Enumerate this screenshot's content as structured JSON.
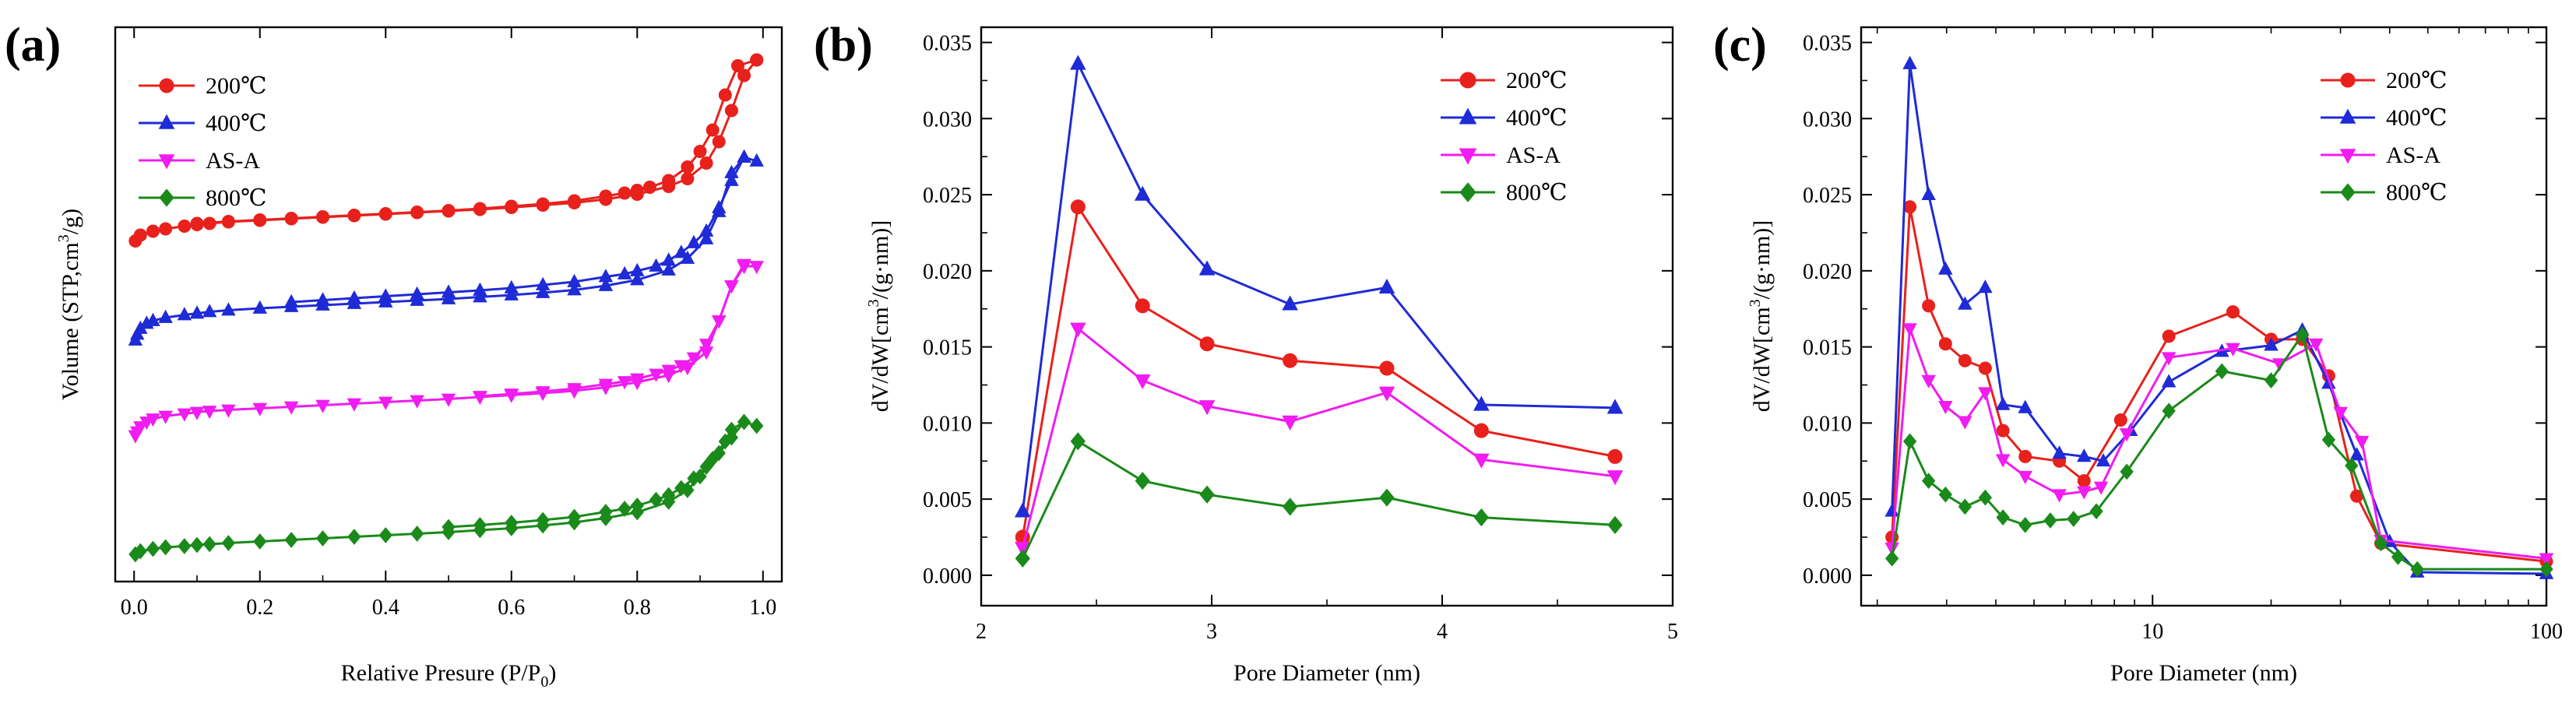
{
  "chart_data": [
    {
      "id": "a",
      "panel_label": "(a)",
      "type": "line",
      "title": "",
      "xlabel_main": "Relative Presure (P/P",
      "xlabel_sub": "0",
      "xlabel_tail": ")",
      "ylabel_main": "Volume (STP,cm",
      "ylabel_sup": "3",
      "ylabel_tail": "/g)",
      "xlim": [
        -0.03,
        1.03
      ],
      "ylim": [
        0,
        100
      ],
      "xticks": [
        0.0,
        0.2,
        0.4,
        0.6,
        0.8,
        1.0
      ],
      "xtick_labels": [
        "0.0",
        "0.2",
        "0.4",
        "0.6",
        "0.8",
        "1.0"
      ],
      "y_tick_labels_shown": false,
      "legend_position": "top-left",
      "series": [
        {
          "name": "200℃",
          "color": "#e8211c",
          "marker": "circle",
          "adsorption": {
            "x": [
              0.002,
              0.01,
              0.03,
              0.05,
              0.08,
              0.1,
              0.12,
              0.15,
              0.2,
              0.25,
              0.3,
              0.35,
              0.4,
              0.45,
              0.5,
              0.55,
              0.6,
              0.65,
              0.7,
              0.75,
              0.8,
              0.85,
              0.88,
              0.91,
              0.93,
              0.95,
              0.97,
              0.99
            ],
            "y": [
              83.5,
              85,
              86,
              86.6,
              87.3,
              87.7,
              88,
              88.4,
              88.8,
              89.2,
              89.6,
              90,
              90.4,
              90.8,
              91.2,
              91.6,
              92.1,
              92.7,
              93.3,
              94.2,
              95.5,
              97.5,
              99.5,
              103.5,
              109,
              117,
              126,
              130
            ]
          },
          "desorption": {
            "x": [
              0.99,
              0.96,
              0.94,
              0.92,
              0.9,
              0.88,
              0.85,
              0.82,
              0.8,
              0.78,
              0.75,
              0.7,
              0.65,
              0.6,
              0.55,
              0.5,
              0.45,
              0.4,
              0.35,
              0.3,
              0.25,
              0.2,
              0.15,
              0.1
            ],
            "y": [
              130,
              128.5,
              121,
              112,
              106.5,
              102.5,
              99,
              97.3,
              96.5,
              95.8,
              95,
              93.8,
              93,
              92.4,
              91.8,
              91.3,
              90.9,
              90.5,
              90.1,
              89.7,
              89.3,
              88.9,
              88.5,
              88
            ]
          }
        },
        {
          "name": "400℃",
          "color": "#1f2bd6",
          "marker": "triangle-up",
          "adsorption": {
            "x": [
              0.002,
              0.005,
              0.01,
              0.02,
              0.03,
              0.05,
              0.08,
              0.1,
              0.12,
              0.15,
              0.2,
              0.25,
              0.3,
              0.35,
              0.4,
              0.45,
              0.5,
              0.55,
              0.6,
              0.65,
              0.7,
              0.75,
              0.8,
              0.85,
              0.88,
              0.91,
              0.93,
              0.95,
              0.97,
              0.99
            ],
            "y": [
              58,
              59.5,
              61,
              62.3,
              63,
              63.8,
              64.5,
              64.9,
              65.3,
              65.7,
              66.2,
              66.6,
              67,
              67.4,
              67.8,
              68.2,
              68.6,
              69.1,
              69.6,
              70.2,
              70.9,
              72,
              73.5,
              76,
              79,
              84,
              91,
              101,
              105,
              104
            ]
          },
          "desorption": {
            "x": [
              0.97,
              0.95,
              0.93,
              0.91,
              0.89,
              0.87,
              0.85,
              0.83,
              0.8,
              0.78,
              0.75,
              0.7,
              0.65,
              0.6,
              0.55,
              0.5,
              0.45,
              0.4,
              0.35,
              0.3,
              0.25
            ],
            "y": [
              105,
              99,
              92,
              86,
              83,
              80.5,
              78.5,
              77,
              75.8,
              75,
              74.3,
              73,
              72.2,
              71.4,
              70.8,
              70.3,
              69.8,
              69.3,
              68.8,
              68.3,
              67.8
            ]
          }
        },
        {
          "name": "AS-A",
          "color": "#f01cf0",
          "marker": "triangle-down",
          "adsorption": {
            "x": [
              0.002,
              0.005,
              0.01,
              0.02,
              0.03,
              0.05,
              0.08,
              0.1,
              0.12,
              0.15,
              0.2,
              0.25,
              0.3,
              0.35,
              0.4,
              0.45,
              0.5,
              0.55,
              0.6,
              0.65,
              0.7,
              0.75,
              0.8,
              0.85,
              0.88,
              0.91,
              0.93,
              0.95,
              0.97,
              0.99
            ],
            "y": [
              33.5,
              34.5,
              35.8,
              37,
              37.8,
              38.5,
              39.1,
              39.5,
              39.8,
              40.1,
              40.5,
              40.9,
              41.3,
              41.7,
              42.1,
              42.5,
              42.9,
              43.4,
              43.9,
              44.4,
              45,
              45.9,
              47.2,
              49,
              51,
              55,
              63,
              72,
              77,
              77
            ]
          },
          "desorption": {
            "x": [
              0.97,
              0.95,
              0.93,
              0.91,
              0.89,
              0.87,
              0.85,
              0.83,
              0.8,
              0.78,
              0.75,
              0.7,
              0.65,
              0.6,
              0.55
            ],
            "y": [
              77.5,
              72,
              63,
              57,
              53.5,
              51.5,
              50.3,
              49.3,
              48.1,
              47.4,
              46.7,
              45.6,
              44.8,
              44.2,
              43.6
            ]
          }
        },
        {
          "name": "800℃",
          "color": "#1a8a1a",
          "marker": "diamond",
          "adsorption": {
            "x": [
              0.002,
              0.01,
              0.03,
              0.05,
              0.08,
              0.1,
              0.12,
              0.15,
              0.2,
              0.25,
              0.3,
              0.35,
              0.4,
              0.45,
              0.5,
              0.55,
              0.6,
              0.65,
              0.7,
              0.75,
              0.8,
              0.85,
              0.88,
              0.9,
              0.92,
              0.94,
              0.95,
              0.97,
              0.99
            ],
            "y": [
              3,
              3.8,
              4.4,
              4.8,
              5.1,
              5.4,
              5.6,
              5.9,
              6.3,
              6.7,
              7.1,
              7.5,
              7.9,
              8.3,
              8.7,
              9.2,
              9.7,
              10.4,
              11.2,
              12.3,
              13.8,
              16.5,
              19.5,
              23,
              27.5,
              32,
              35,
              37,
              36
            ]
          },
          "desorption": {
            "x": [
              0.97,
              0.95,
              0.93,
              0.91,
              0.89,
              0.87,
              0.85,
              0.83,
              0.8,
              0.78,
              0.75,
              0.7,
              0.65,
              0.6,
              0.55,
              0.5
            ],
            "y": [
              37,
              33,
              29,
              25.5,
              22.5,
              20,
              18.2,
              17,
              15.5,
              14.7,
              13.9,
              12.6,
              11.8,
              11.1,
              10.5,
              10
            ]
          }
        }
      ]
    },
    {
      "id": "b",
      "panel_label": "(b)",
      "type": "line",
      "title": "",
      "xlabel_main": "Pore Diameter (nm)",
      "ylabel_main": "dV/dW[cm",
      "ylabel_sup": "3",
      "ylabel_tail": "/(g·nm)]",
      "xscale": "linear",
      "xlim": [
        2,
        5
      ],
      "ylim": [
        -0.002,
        0.036
      ],
      "xticks": [
        2,
        3,
        4,
        5
      ],
      "xtick_labels": [
        "2",
        "3",
        "4",
        "5"
      ],
      "yticks": [
        0.0,
        0.005,
        0.01,
        0.015,
        0.02,
        0.025,
        0.03,
        0.035
      ],
      "ytick_labels": [
        "0.000",
        "0.005",
        "0.010",
        "0.015",
        "0.020",
        "0.025",
        "0.030",
        "0.035"
      ],
      "legend_position": "top-right",
      "series": [
        {
          "name": "200℃",
          "color": "#e8211c",
          "marker": "circle",
          "x": [
            2.18,
            2.42,
            2.7,
            2.98,
            3.34,
            3.76,
            4.17,
            4.75
          ],
          "y": [
            0.0025,
            0.0242,
            0.0177,
            0.0152,
            0.0141,
            0.0136,
            0.0095,
            0.0078
          ]
        },
        {
          "name": "400℃",
          "color": "#1f2bd6",
          "marker": "triangle-up",
          "x": [
            2.18,
            2.42,
            2.7,
            2.98,
            3.34,
            3.76,
            4.17,
            4.75
          ],
          "y": [
            0.0042,
            0.0336,
            0.025,
            0.0201,
            0.0178,
            0.0189,
            0.0112,
            0.011
          ]
        },
        {
          "name": "AS-A",
          "color": "#f01cf0",
          "marker": "triangle-down",
          "x": [
            2.18,
            2.42,
            2.7,
            2.98,
            3.34,
            3.76,
            4.17,
            4.75
          ],
          "y": [
            0.0018,
            0.0162,
            0.0128,
            0.0111,
            0.0101,
            0.012,
            0.0076,
            0.0065
          ]
        },
        {
          "name": "800℃",
          "color": "#1a8a1a",
          "marker": "diamond",
          "x": [
            2.18,
            2.42,
            2.7,
            2.98,
            3.34,
            3.76,
            4.17,
            4.75
          ],
          "y": [
            0.0011,
            0.0088,
            0.0062,
            0.0053,
            0.0045,
            0.0051,
            0.0038,
            0.0033
          ]
        }
      ]
    },
    {
      "id": "c",
      "panel_label": "(c)",
      "type": "line",
      "title": "",
      "xlabel_main": "Pore Diameter (nm)",
      "ylabel_main": "dV/dW[cm",
      "ylabel_sup": "3",
      "ylabel_tail": "/(g·nm)]",
      "xscale": "log",
      "xlim": [
        1.82,
        100
      ],
      "ylim": [
        -0.002,
        0.036
      ],
      "xticks": [
        10,
        100
      ],
      "xtick_labels": [
        "10",
        "100"
      ],
      "yticks": [
        0.0,
        0.005,
        0.01,
        0.015,
        0.02,
        0.025,
        0.03,
        0.035
      ],
      "ytick_labels": [
        "0.000",
        "0.005",
        "0.010",
        "0.015",
        "0.020",
        "0.025",
        "0.030",
        "0.035"
      ],
      "legend_position": "top-right",
      "series": [
        {
          "name": "200℃",
          "color": "#e8211c",
          "marker": "circle",
          "x": [
            2.18,
            2.42,
            2.7,
            2.98,
            3.34,
            3.76,
            4.17,
            4.75,
            5.8,
            6.7,
            8.3,
            11,
            16,
            20,
            24,
            28,
            33,
            38,
            100
          ],
          "y": [
            0.0025,
            0.0242,
            0.0177,
            0.0152,
            0.0141,
            0.0136,
            0.0095,
            0.0078,
            0.0075,
            0.0062,
            0.0102,
            0.0157,
            0.0173,
            0.0155,
            0.0155,
            0.0131,
            0.0052,
            0.0021,
            0.0009
          ]
        },
        {
          "name": "400℃",
          "color": "#1f2bd6",
          "marker": "triangle-up",
          "x": [
            2.18,
            2.42,
            2.7,
            2.98,
            3.34,
            3.76,
            4.17,
            4.75,
            5.8,
            6.7,
            7.5,
            8.8,
            11,
            15,
            20,
            24,
            28,
            33,
            40,
            47,
            100
          ],
          "y": [
            0.0042,
            0.0336,
            0.025,
            0.0201,
            0.0178,
            0.0189,
            0.0112,
            0.011,
            0.008,
            0.0078,
            0.0075,
            0.0095,
            0.0127,
            0.0147,
            0.0151,
            0.0161,
            0.0126,
            0.0079,
            0.0022,
            0.0002,
            0.0001
          ]
        },
        {
          "name": "AS-A",
          "color": "#f01cf0",
          "marker": "triangle-down",
          "x": [
            2.18,
            2.42,
            2.7,
            2.98,
            3.34,
            3.76,
            4.17,
            4.75,
            5.8,
            6.7,
            7.4,
            8.6,
            11,
            16,
            21,
            26,
            30,
            34,
            38,
            100
          ],
          "y": [
            0.0018,
            0.0162,
            0.0128,
            0.0111,
            0.0101,
            0.012,
            0.0076,
            0.0065,
            0.0053,
            0.0055,
            0.0058,
            0.0093,
            0.0143,
            0.0149,
            0.0139,
            0.0152,
            0.0107,
            0.0088,
            0.0023,
            0.0011
          ]
        },
        {
          "name": "800℃",
          "color": "#1a8a1a",
          "marker": "diamond",
          "x": [
            2.18,
            2.42,
            2.7,
            2.98,
            3.34,
            3.76,
            4.17,
            4.75,
            5.5,
            6.3,
            7.2,
            8.6,
            11,
            15,
            20,
            24,
            28,
            32,
            38,
            42,
            47,
            100
          ],
          "y": [
            0.0011,
            0.0088,
            0.0062,
            0.0053,
            0.0045,
            0.0051,
            0.0038,
            0.0033,
            0.0036,
            0.0037,
            0.0042,
            0.0068,
            0.0108,
            0.0134,
            0.0128,
            0.0158,
            0.0089,
            0.0072,
            0.0021,
            0.0012,
            0.0004,
            0.0004
          ]
        }
      ]
    }
  ]
}
